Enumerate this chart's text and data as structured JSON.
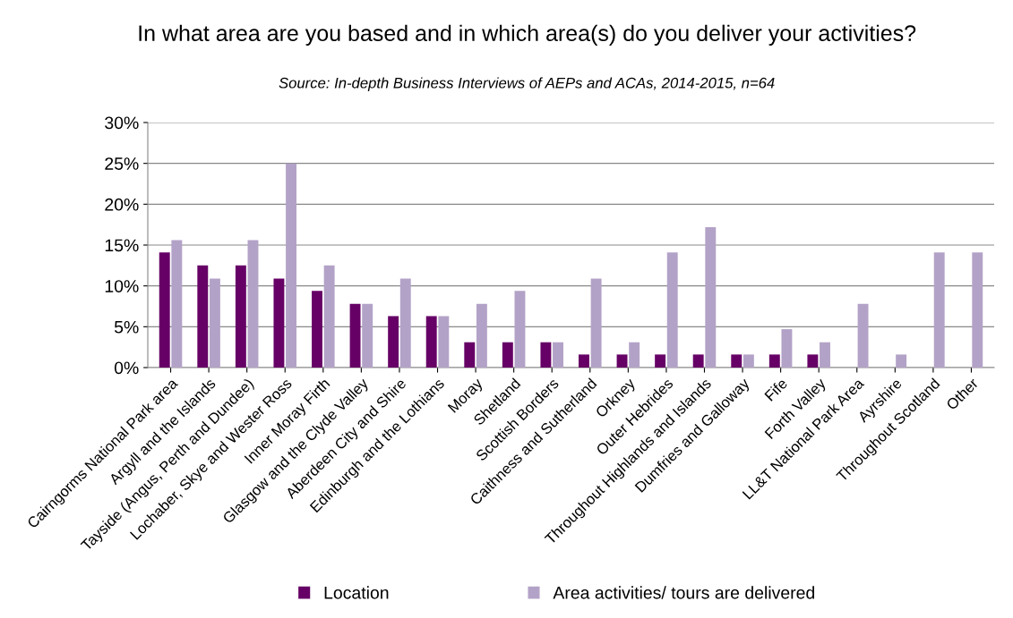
{
  "chart_data": {
    "type": "bar",
    "title": "In what area are you based and in which area(s) do you deliver your activities?",
    "subtitle": "Source: In-depth Business Interviews of AEPs and ACAs, 2014-2015, n=64",
    "categories": [
      "Cairngorms National Park area",
      "Argyll and the Islands",
      "Tayside (Angus, Perth and Dundee)",
      "Lochaber, Skye and Wester Ross",
      "Inner Moray Firth",
      "Glasgow and the Clyde Valley",
      "Aberdeen City and Shire",
      "Edinburgh and the Lothians",
      "Moray",
      "Shetland",
      "Scottish Borders",
      "Caithness and Sutherland",
      "Orkney",
      "Outer Hebrides",
      "Throughout Highlands and Islands",
      "Dumfries and Galloway",
      "Fife",
      "Forth Valley",
      "LL&T National Park Area",
      "Ayrshire",
      "Throughout Scotland",
      "Other"
    ],
    "series": [
      {
        "name": "Location",
        "color": "#660066",
        "values": [
          14.1,
          12.5,
          12.5,
          10.9,
          9.4,
          7.8,
          6.3,
          6.3,
          3.1,
          3.1,
          3.1,
          1.6,
          1.6,
          1.6,
          1.6,
          1.6,
          1.6,
          1.6,
          0,
          0,
          0,
          0
        ]
      },
      {
        "name": "Area activities/ tours are delivered",
        "color": "#b3a2c7",
        "values": [
          15.6,
          10.9,
          15.6,
          25,
          12.5,
          7.8,
          10.9,
          6.3,
          7.8,
          9.4,
          3.1,
          10.9,
          3.1,
          14.1,
          17.2,
          1.6,
          4.7,
          3.1,
          7.8,
          1.6,
          14.1,
          14.1
        ]
      }
    ],
    "ylim": [
      0,
      30
    ],
    "yticks": [
      {
        "value": 0,
        "label": "0%"
      },
      {
        "value": 5,
        "label": "5%"
      },
      {
        "value": 10,
        "label": "10%"
      },
      {
        "value": 15,
        "label": "15%"
      },
      {
        "value": 20,
        "label": "20%"
      },
      {
        "value": 25,
        "label": "25%"
      },
      {
        "value": 30,
        "label": "30%"
      }
    ],
    "grid": "y",
    "legend": "bottom"
  }
}
